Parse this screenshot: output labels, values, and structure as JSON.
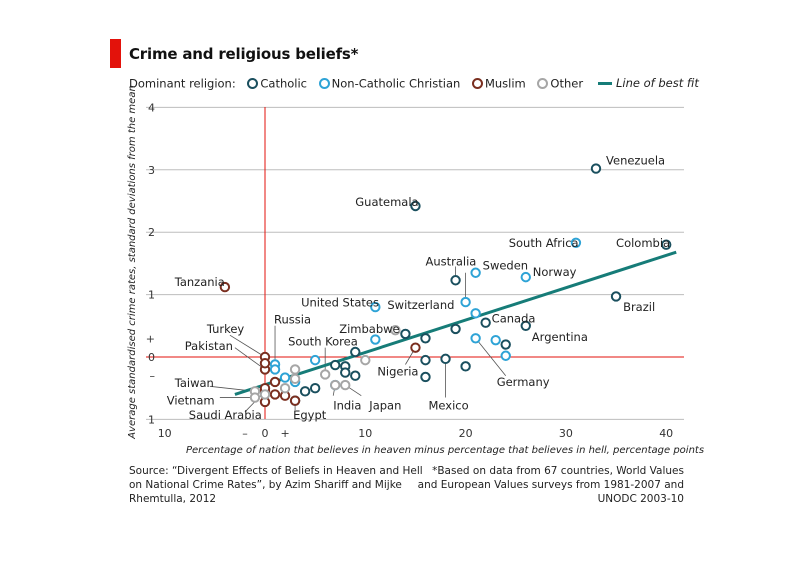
{
  "title": "Crime and religious beliefs*",
  "legend": {
    "prefix": "Dominant religion:",
    "items": [
      {
        "label": "Catholic",
        "color": "#1a4f5e"
      },
      {
        "label": "Non-Catholic Christian",
        "color": "#2ea3d6"
      },
      {
        "label": "Muslim",
        "color": "#7a2e1f"
      },
      {
        "label": "Other",
        "color": "#a6a6a6"
      }
    ],
    "fit_label": "Line of best fit",
    "fit_color": "#167c78"
  },
  "source": "Source: “Divergent Effects of Beliefs in Heaven and Hell on National Crime Rates”, by Azim Shariff and Mijke Rhemtulla, 2012",
  "footnote": "*Based on data from 67 countries, World Values and European Values surveys from 1981-2007 and UNODC 2003-10",
  "chart_data": {
    "type": "scatter",
    "xlabel": "Percentage of nation that believes in heaven minus percentage that believes in hell, percentage points",
    "ylabel": "Average standardised crime rates, standard deviations from the mean",
    "xlim": [
      -10,
      42
    ],
    "ylim": [
      -1,
      4
    ],
    "x_ticks": [
      "10",
      "–",
      "0",
      "+",
      "10",
      "20",
      "30",
      "40"
    ],
    "y_ticks": [
      "1",
      "–",
      "0",
      "+",
      "1",
      "2",
      "3",
      "4"
    ],
    "grid": "horizontal",
    "fit_line": {
      "x": [
        -3,
        41
      ],
      "y": [
        -0.6,
        1.68
      ]
    },
    "series": [
      {
        "name": "Catholic",
        "points": [
          {
            "x": 33,
            "y": 3.02,
            "label": "Venezuela"
          },
          {
            "x": 15,
            "y": 2.42,
            "label": "Guatemala"
          },
          {
            "x": 40,
            "y": 1.8,
            "label": "Colombia"
          },
          {
            "x": 35,
            "y": 0.97,
            "label": "Brazil"
          },
          {
            "x": 19,
            "y": 1.23,
            "label": "Australia"
          },
          {
            "x": 22,
            "y": 0.55,
            "label": "Canada"
          },
          {
            "x": 26,
            "y": 0.5,
            "label": "Argentina"
          },
          {
            "x": 18,
            "y": -0.03,
            "label": "Mexico"
          },
          {
            "x": 19,
            "y": 0.45
          },
          {
            "x": 14,
            "y": 0.37
          },
          {
            "x": 16,
            "y": 0.3
          },
          {
            "x": 24,
            "y": 0.2
          },
          {
            "x": 16,
            "y": -0.05
          },
          {
            "x": 20,
            "y": -0.15
          },
          {
            "x": 16,
            "y": -0.32
          },
          {
            "x": 9,
            "y": 0.08
          },
          {
            "x": 7,
            "y": -0.13
          },
          {
            "x": 8,
            "y": -0.15
          },
          {
            "x": 8,
            "y": -0.25
          },
          {
            "x": 9,
            "y": -0.3
          },
          {
            "x": 5,
            "y": -0.5
          },
          {
            "x": 4,
            "y": -0.55
          },
          {
            "x": 3,
            "y": -0.7
          }
        ]
      },
      {
        "name": "Non-Catholic Christian",
        "points": [
          {
            "x": 31,
            "y": 1.83,
            "label": "South Africa"
          },
          {
            "x": 21,
            "y": 1.35,
            "label": "Sweden"
          },
          {
            "x": 26,
            "y": 1.28,
            "label": "Norway"
          },
          {
            "x": 11,
            "y": 0.8,
            "label": "United States"
          },
          {
            "x": 20,
            "y": 0.88,
            "label": "Switzerland"
          },
          {
            "x": 24,
            "y": 0.02,
            "label": "Germany"
          },
          {
            "x": 1,
            "y": -0.12,
            "label": "Russia"
          },
          {
            "x": 21,
            "y": 0.7
          },
          {
            "x": 21,
            "y": 0.3
          },
          {
            "x": 23,
            "y": 0.27
          },
          {
            "x": 11,
            "y": 0.28
          },
          {
            "x": 5,
            "y": -0.05
          },
          {
            "x": 1,
            "y": -0.2
          },
          {
            "x": 2,
            "y": -0.33
          },
          {
            "x": 3,
            "y": -0.4
          },
          {
            "x": 7,
            "y": -0.45
          }
        ]
      },
      {
        "name": "Muslim",
        "points": [
          {
            "x": -4,
            "y": 1.12,
            "label": "Tanzania"
          },
          {
            "x": 15,
            "y": 0.15,
            "label": "Nigeria"
          },
          {
            "x": 0,
            "y": 0.0,
            "label": "Turkey"
          },
          {
            "x": 0,
            "y": -0.2,
            "label": "Pakistan"
          },
          {
            "x": 0,
            "y": -0.55,
            "label": "Saudi Arabia"
          },
          {
            "x": 3,
            "y": -0.7,
            "label": "Egypt"
          },
          {
            "x": 0,
            "y": -0.1
          },
          {
            "x": 1,
            "y": -0.4
          },
          {
            "x": 0,
            "y": -0.5
          },
          {
            "x": 1,
            "y": -0.6
          },
          {
            "x": 2,
            "y": -0.62
          },
          {
            "x": 0,
            "y": -0.72
          }
        ]
      },
      {
        "name": "Other",
        "points": [
          {
            "x": 13,
            "y": 0.43,
            "label": "Zimbabwe"
          },
          {
            "x": 8,
            "y": -0.45,
            "label": "Japan"
          },
          {
            "x": 7,
            "y": -0.45,
            "label": "India"
          },
          {
            "x": -1,
            "y": -0.55,
            "label": "Taiwan"
          },
          {
            "x": -1,
            "y": -0.65,
            "label": "Vietnam"
          },
          {
            "x": 6,
            "y": -0.28,
            "label": "South Korea"
          },
          {
            "x": 10,
            "y": -0.05
          },
          {
            "x": 3,
            "y": -0.2
          },
          {
            "x": 3,
            "y": -0.35
          },
          {
            "x": 2,
            "y": -0.5
          },
          {
            "x": 0,
            "y": -0.6
          }
        ]
      }
    ],
    "annotations": [
      {
        "label": "Venezuela",
        "x": 33,
        "y": 3.02,
        "tx": 34,
        "ty": 3.15
      },
      {
        "label": "Guatemala",
        "x": 15,
        "y": 2.42,
        "tx": 9,
        "ty": 2.48
      },
      {
        "label": "South Africa",
        "x": 31,
        "y": 1.83,
        "tx": 24.3,
        "ty": 1.83
      },
      {
        "label": "Colombia",
        "x": 40,
        "y": 1.8,
        "tx": 35,
        "ty": 1.83
      },
      {
        "label": "Australia",
        "x": 19,
        "y": 1.23,
        "tx": 16,
        "ty": 1.53
      },
      {
        "label": "Sweden",
        "x": 21,
        "y": 1.35,
        "tx": 21.7,
        "ty": 1.47
      },
      {
        "label": "Norway",
        "x": 26,
        "y": 1.28,
        "tx": 26.7,
        "ty": 1.36
      },
      {
        "label": "Tanzania",
        "x": -4,
        "y": 1.12,
        "tx": -9,
        "ty": 1.2
      },
      {
        "label": "Brazil",
        "x": 35,
        "y": 0.97,
        "tx": 35.7,
        "ty": 0.8
      },
      {
        "label": "United States",
        "x": 11,
        "y": 0.8,
        "tx": 3.6,
        "ty": 0.87
      },
      {
        "label": "Switzerland",
        "x": 20,
        "y": 0.88,
        "tx": 12.2,
        "ty": 0.83
      },
      {
        "label": "Russia",
        "x": 1,
        "y": -0.12,
        "tx": 0.9,
        "ty": 0.6
      },
      {
        "label": "Turkey",
        "x": 0,
        "y": 0.0,
        "tx": -5.8,
        "ty": 0.45
      },
      {
        "label": "Zimbabwe",
        "x": 13,
        "y": 0.43,
        "tx": 7.4,
        "ty": 0.45
      },
      {
        "label": "Canada",
        "x": 22,
        "y": 0.55,
        "tx": 22.6,
        "ty": 0.62
      },
      {
        "label": "South Korea",
        "x": 6,
        "y": -0.28,
        "tx": 2.3,
        "ty": 0.25
      },
      {
        "label": "Argentina",
        "x": 26,
        "y": 0.5,
        "tx": 26.6,
        "ty": 0.32
      },
      {
        "label": "Pakistan",
        "x": 0,
        "y": -0.2,
        "tx": -8,
        "ty": 0.18
      },
      {
        "label": "Nigeria",
        "x": 15,
        "y": 0.15,
        "tx": 11.2,
        "ty": -0.23
      },
      {
        "label": "Germany",
        "x": 24,
        "y": 0.02,
        "tx": 23.1,
        "ty": -0.4
      },
      {
        "label": "Taiwan",
        "x": -1,
        "y": -0.55,
        "tx": -9,
        "ty": -0.42
      },
      {
        "label": "India",
        "x": 7,
        "y": -0.45,
        "tx": 6.8,
        "ty": -0.78
      },
      {
        "label": "Japan",
        "x": 8,
        "y": -0.45,
        "tx": 10.4,
        "ty": -0.78
      },
      {
        "label": "Mexico",
        "x": 18,
        "y": -0.03,
        "tx": 16.3,
        "ty": -0.78
      },
      {
        "label": "Vietnam",
        "x": -1,
        "y": -0.65,
        "tx": -9.8,
        "ty": -0.7
      },
      {
        "label": "Saudi Arabia",
        "x": 0,
        "y": -0.55,
        "tx": -7.6,
        "ty": -0.93
      },
      {
        "label": "Egypt",
        "x": 3,
        "y": -0.7,
        "tx": 2.8,
        "ty": -0.93
      }
    ]
  }
}
